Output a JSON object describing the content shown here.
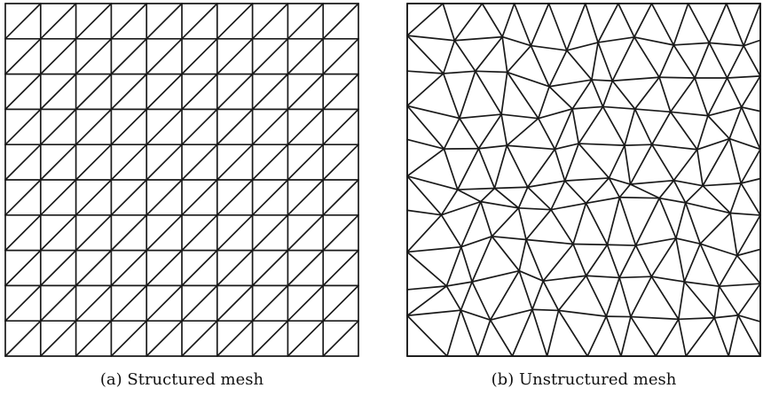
{
  "figure": {
    "captions": {
      "a": "(a) Structured mesh",
      "b": "(b) Unstructured mesh"
    },
    "structured_mesh": {
      "divisions": 10,
      "diagonal": "bottom-left to top-right in every cell"
    },
    "unstructured_mesh": {
      "element": "triangle",
      "approx_edge_nodes_per_side": 11
    },
    "line_color": "#1a1a1a"
  }
}
